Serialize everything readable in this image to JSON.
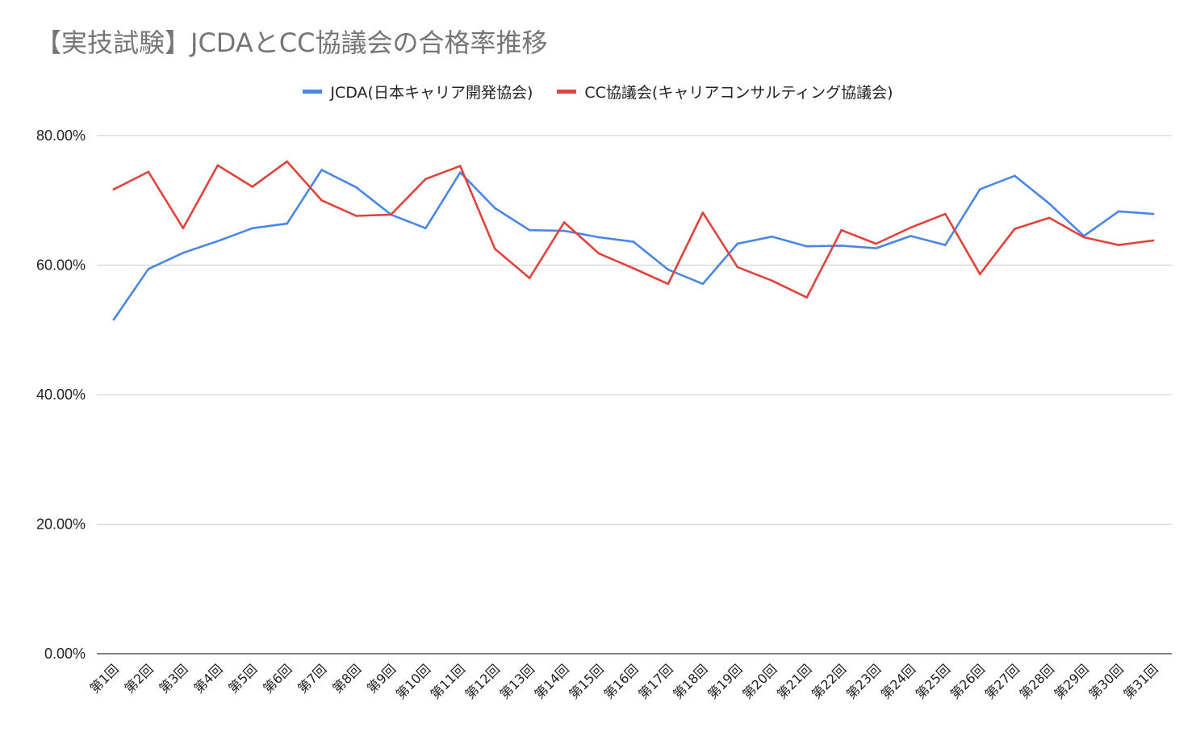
{
  "chart_data": {
    "type": "line",
    "title": "【実技試験】JCDAとCC協議会の合格率推移",
    "xlabel": "",
    "ylabel": "",
    "ylim": [
      0,
      80
    ],
    "y_ticks": [
      "0.00%",
      "20.00%",
      "40.00%",
      "60.00%",
      "80.00%"
    ],
    "y_tick_values": [
      0,
      20,
      40,
      60,
      80
    ],
    "grid": true,
    "legend_position": "top-center",
    "categories": [
      "第1回",
      "第2回",
      "第3回",
      "第4回",
      "第5回",
      "第6回",
      "第7回",
      "第8回",
      "第9回",
      "第10回",
      "第11回",
      "第12回",
      "第13回",
      "第14回",
      "第15回",
      "第16回",
      "第17回",
      "第18回",
      "第19回",
      "第20回",
      "第21回",
      "第22回",
      "第23回",
      "第24回",
      "第25回",
      "第26回",
      "第27回",
      "第28回",
      "第29回",
      "第30回",
      "第31回"
    ],
    "series": [
      {
        "name": "JCDA(日本キャリア開発協会)",
        "color": "#4a86e8",
        "values": [
          51.6,
          59.4,
          61.9,
          63.7,
          65.7,
          66.4,
          74.7,
          72.0,
          67.8,
          65.7,
          74.3,
          68.8,
          65.4,
          65.3,
          64.3,
          63.6,
          59.3,
          57.1,
          63.3,
          64.4,
          62.9,
          63.0,
          62.6,
          64.5,
          63.1,
          71.7,
          73.8,
          69.5,
          64.5,
          68.3,
          67.9
        ]
      },
      {
        "name": "CC協議会(キャリアコンサルティング協議会)",
        "color": "#e0433b",
        "values": [
          71.7,
          74.4,
          65.7,
          75.4,
          72.1,
          76.0,
          70.0,
          67.6,
          67.8,
          73.3,
          75.3,
          62.5,
          58.0,
          66.6,
          61.8,
          59.5,
          57.1,
          68.1,
          59.7,
          57.6,
          55.0,
          65.4,
          63.3,
          65.8,
          67.9,
          58.6,
          65.6,
          67.3,
          64.3,
          63.1,
          63.8
        ]
      }
    ]
  }
}
